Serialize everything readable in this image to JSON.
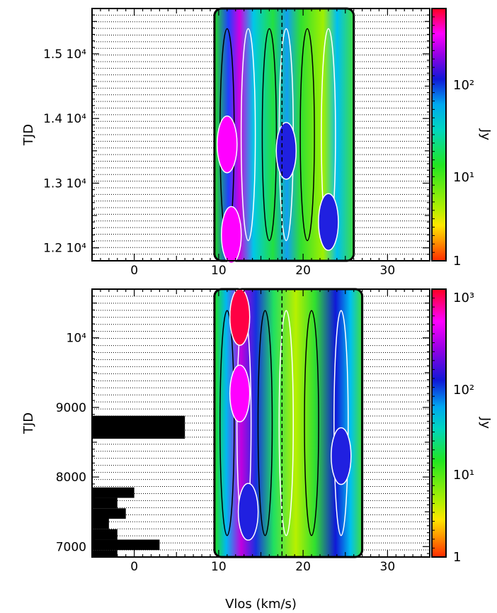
{
  "chart_data": [
    {
      "type": "heatmap",
      "panel": "top",
      "xlim": [
        -5,
        35
      ],
      "ylim": [
        11800,
        15700
      ],
      "x_ticks": [
        0,
        10,
        20,
        30
      ],
      "x_tick_labels": [
        "0",
        "10",
        "20",
        "30"
      ],
      "y_ticks": [
        12000,
        13000,
        14000,
        15000
      ],
      "y_tick_labels": [
        "1.2 10⁴",
        "1.3 10⁴",
        "1.4 10⁴",
        "1.5 10⁴"
      ],
      "ylabel": "TJD",
      "colorbar": {
        "scale": "log",
        "range": [
          1,
          800
        ],
        "tick_labels": [
          "1",
          "10¹",
          "10²"
        ],
        "label": "Jy",
        "colormap": [
          "#ff2a00",
          "#ffd400",
          "#2cf02c",
          "#00c8c8",
          "#1018d8",
          "#ff00ff",
          "#ff0020"
        ]
      },
      "emission_band_kms": [
        9.5,
        26
      ],
      "peaks": [
        {
          "v": 11.5,
          "tjd": 12200,
          "level": "high"
        },
        {
          "v": 11,
          "tjd": 13600,
          "level": "high"
        },
        {
          "v": 18,
          "tjd": 13500,
          "level": "medium"
        },
        {
          "v": 23,
          "tjd": 12400,
          "level": "medium"
        }
      ],
      "grid": true
    },
    {
      "type": "heatmap",
      "panel": "bottom",
      "xlim": [
        -5,
        35
      ],
      "ylim": [
        6850,
        10700
      ],
      "x_ticks": [
        0,
        10,
        20,
        30
      ],
      "x_tick_labels": [
        "0",
        "10",
        "20",
        "30"
      ],
      "y_ticks": [
        7000,
        8000,
        9000,
        10000
      ],
      "y_tick_labels": [
        "7000",
        "8000",
        "9000",
        "10⁴"
      ],
      "xlabel": "Vlos (km/s)",
      "ylabel": "TJD",
      "colorbar": {
        "scale": "log",
        "range": [
          1,
          1000
        ],
        "tick_labels": [
          "1",
          "10¹",
          "10²",
          "10³"
        ],
        "label": "Jy",
        "colormap": [
          "#ff2a00",
          "#ffd400",
          "#2cf02c",
          "#00c8c8",
          "#1018d8",
          "#ff00ff",
          "#ff0020"
        ]
      },
      "emission_band_kms": [
        9.5,
        27
      ],
      "peaks": [
        {
          "v": 12.5,
          "tjd": 10300,
          "level": "very-high"
        },
        {
          "v": 12.5,
          "tjd": 9200,
          "level": "high"
        },
        {
          "v": 24.5,
          "tjd": 8300,
          "level": "medium"
        },
        {
          "v": 13.5,
          "tjd": 7500,
          "level": "medium"
        }
      ],
      "grid": true
    }
  ]
}
